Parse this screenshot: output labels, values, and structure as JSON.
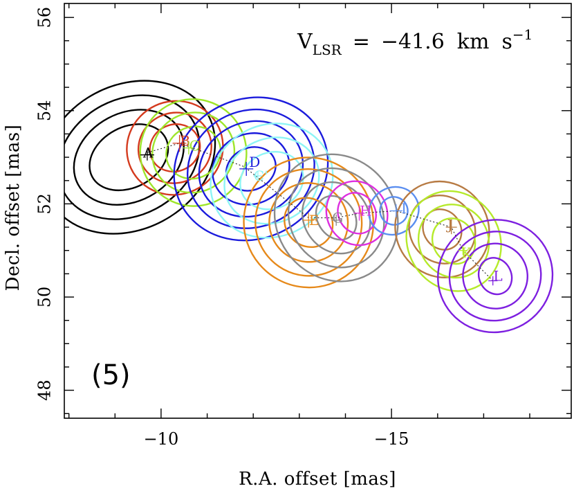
{
  "chart_data": {
    "type": "contour",
    "xlabel": "R.A. offset [mas]",
    "ylabel": "Decl. offset [mas]",
    "xlim": [
      -7.9,
      -18.9
    ],
    "ylim": [
      47.4,
      56.3
    ],
    "xticks": [
      -10,
      -15
    ],
    "xtick_labels": [
      "−10",
      "−15"
    ],
    "yticks": [
      48,
      50,
      52,
      54,
      56
    ],
    "ytick_labels": [
      "48",
      "50",
      "52",
      "54",
      "56"
    ],
    "annotation": {
      "prefix": "V",
      "subscript": "LSR",
      "equals": "=",
      "value": "−41.6",
      "unit_km": "km",
      "unit_s": "s",
      "exponent": "−1"
    },
    "panel_label": "(5)",
    "path": [
      [
        -9.7,
        53.1
      ],
      [
        -10.4,
        53.3
      ],
      [
        -11.8,
        52.8
      ],
      [
        -13.2,
        51.7
      ],
      [
        -13.8,
        51.7
      ],
      [
        -14.3,
        51.8
      ],
      [
        -15.1,
        51.85
      ],
      [
        -16.3,
        51.5
      ],
      [
        -16.55,
        51.0
      ],
      [
        -17.2,
        50.35
      ]
    ],
    "spots": [
      {
        "label": "A",
        "color": "#000000",
        "x": -9.7,
        "y": 53.1,
        "peak": [
          -9.7,
          53.05
        ],
        "center": [
          -9.3,
          53.0
        ],
        "rx": [
          0.9,
          1.25,
          1.6,
          1.95
        ],
        "ry": [
          0.65,
          0.95,
          1.25,
          1.55
        ],
        "angle": -28,
        "err": [
          0.15,
          0.12
        ]
      },
      {
        "label": "B",
        "color": "#d43a1e",
        "x": -10.5,
        "y": 53.35,
        "peak": [
          -10.4,
          53.3
        ],
        "center": [
          -10.3,
          53.2
        ],
        "rx": [
          0.55,
          0.8,
          1.05
        ],
        "ry": [
          0.5,
          0.75,
          1.0
        ],
        "angle": -25,
        "err": [
          0.15,
          0.18
        ]
      },
      {
        "label": "C",
        "color": "#9ee52a",
        "x": -10.7,
        "y": 53.25,
        "peak": [
          -10.6,
          53.2
        ],
        "center": [
          -10.7,
          53.1
        ],
        "rx": [
          0.6,
          0.9,
          1.15
        ],
        "ry": [
          0.55,
          0.85,
          1.15
        ],
        "angle": -30,
        "err": [
          0.12,
          0.14
        ]
      },
      {
        "label": "D",
        "color": "#1b1bdc",
        "x": -12.0,
        "y": 52.9,
        "peak": [
          -11.85,
          52.75
        ],
        "center": [
          -11.95,
          52.75
        ],
        "rx": [
          0.55,
          0.85,
          1.15,
          1.4,
          1.7
        ],
        "ry": [
          0.45,
          0.75,
          1.0,
          1.25,
          1.5
        ],
        "angle": -25,
        "err": [
          0.15,
          0.15
        ]
      },
      {
        "label": "C'",
        "color": "#8ef5f5",
        "x": -12.1,
        "y": 52.6,
        "peak": [
          -12.1,
          52.6
        ],
        "center": [
          -12.4,
          52.5
        ],
        "rx": [
          0.7,
          1.05,
          1.35
        ],
        "ry": [
          0.6,
          0.9,
          1.2
        ],
        "angle": -25,
        "err": [
          0.1,
          0.1
        ]
      },
      {
        "label": "E",
        "color": "#e6891a",
        "x": -13.3,
        "y": 51.65,
        "peak": [
          -13.2,
          51.65
        ],
        "center": [
          -13.2,
          51.6
        ],
        "rx": [
          0.5,
          0.85,
          1.15,
          1.4
        ],
        "ry": [
          0.55,
          0.85,
          1.15,
          1.4
        ],
        "angle": -40,
        "err": [
          0.12,
          0.16
        ]
      },
      {
        "label": "G",
        "color": "#8a8a8a",
        "x": -13.8,
        "y": 51.7,
        "peak": [
          -13.8,
          51.65
        ],
        "center": [
          -13.8,
          51.7
        ],
        "rx": [
          0.4,
          0.7,
          1.0,
          1.3
        ],
        "ry": [
          0.5,
          0.8,
          1.1,
          1.4
        ],
        "angle": -35,
        "err": [
          0.1,
          0.12
        ]
      },
      {
        "label": "H",
        "color": "#dd2fe0",
        "x": -14.4,
        "y": 51.85,
        "peak": [
          -14.3,
          51.8
        ],
        "center": [
          -14.25,
          51.8
        ],
        "rx": [
          0.4,
          0.65
        ],
        "ry": [
          0.45,
          0.7
        ],
        "angle": -30,
        "err": [
          0.12,
          0.16
        ]
      },
      {
        "label": "I",
        "color": "#5a8ef0",
        "x": -15.3,
        "y": 51.9,
        "peak": [
          -15.1,
          51.85
        ],
        "center": [
          -15.05,
          51.85
        ],
        "rx": [
          0.3,
          0.55
        ],
        "ry": [
          0.3,
          0.5
        ],
        "angle": -30,
        "err": [
          0.14,
          0.14
        ]
      },
      {
        "label": "J",
        "color": "#b77a43",
        "x": -16.3,
        "y": 51.55,
        "peak": [
          -16.3,
          51.5
        ],
        "center": [
          -16.1,
          51.45
        ],
        "rx": [
          0.4,
          0.7,
          1.0
        ],
        "ry": [
          0.45,
          0.75,
          1.05
        ],
        "angle": -35,
        "err": [
          0.12,
          0.15
        ]
      },
      {
        "label": "K",
        "color": "#b5ea2a",
        "x": -16.6,
        "y": 50.95,
        "peak": [
          -16.55,
          51.0
        ],
        "center": [
          -16.35,
          51.2
        ],
        "rx": [
          0.45,
          0.75,
          1.0
        ],
        "ry": [
          0.5,
          0.8,
          1.1
        ],
        "angle": -30,
        "err": [
          0.1,
          0.1
        ]
      },
      {
        "label": "L",
        "color": "#7d1fe0",
        "x": -17.3,
        "y": 50.45,
        "peak": [
          -17.2,
          50.35
        ],
        "center": [
          -17.25,
          50.45
        ],
        "rx": [
          0.35,
          0.7,
          1.0,
          1.25
        ],
        "ry": [
          0.4,
          0.7,
          0.95,
          1.2
        ],
        "angle": -25,
        "err": [
          0.1,
          0.1
        ]
      }
    ]
  }
}
